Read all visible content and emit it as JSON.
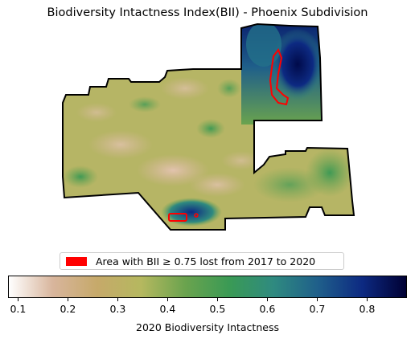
{
  "title": "Biodiversity Intactness Index(BII) - Phoenix Subdivision",
  "legend": {
    "label": "Area with BII ≥ 0.75 lost from 2017 to 2020",
    "color": "#ff0000"
  },
  "colorbar": {
    "label": "2020 Biodiversity Intactness",
    "ticks": [
      "0.1",
      "0.2",
      "0.3",
      "0.4",
      "0.5",
      "0.6",
      "0.7",
      "0.8"
    ],
    "tick_values": [
      0.1,
      0.2,
      0.3,
      0.4,
      0.5,
      0.6,
      0.7,
      0.8
    ],
    "range": [
      0.08,
      0.88
    ],
    "colormap_stops": [
      "#ffffff",
      "#d8b59c",
      "#c6a96a",
      "#b5b85f",
      "#6aa34e",
      "#3a9a55",
      "#2f8a80",
      "#1f5f8a",
      "#0d2a82",
      "#000033"
    ]
  },
  "colors": {
    "boundary": "#000000",
    "base_fill": "#b6b565",
    "loss_outline": "#ff0000"
  }
}
